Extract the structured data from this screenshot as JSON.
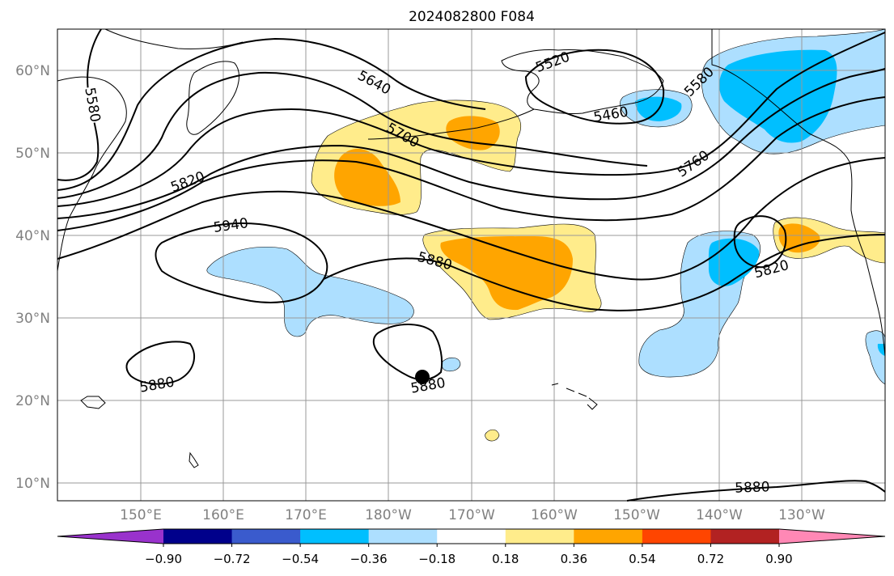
{
  "title": "2024082800 F084",
  "lat_labels": [
    "60°N",
    "50°N",
    "40°N",
    "30°N",
    "20°N",
    "10°N"
  ],
  "lon_labels": [
    "150°E",
    "160°E",
    "170°E",
    "180°W",
    "170°W",
    "160°W",
    "150°W",
    "140°W",
    "130°W"
  ],
  "contour_labels": [
    "5580",
    "5640",
    "5700",
    "5520",
    "5460",
    "5580",
    "5760",
    "5820",
    "5940",
    "5880",
    "5820",
    "5880",
    "5880",
    "5880"
  ],
  "colorbar": {
    "ticks": [
      "−0.90",
      "−0.72",
      "−0.54",
      "−0.36",
      "−0.18",
      "0.18",
      "0.36",
      "0.54",
      "0.72",
      "0.90"
    ],
    "colors": [
      "#9932CC",
      "#00008B",
      "#3A5BCD",
      "#00BFFF",
      "#ADDFFF",
      "#FFFFFF",
      "#FFEC8B",
      "#FFA500",
      "#FF4500",
      "#B22222",
      "#FF88B5"
    ]
  },
  "colors": {
    "pos_light": "#FFEC8B",
    "pos_mid": "#FFA500",
    "neg_light": "#ADDFFF",
    "neg_mid": "#00BFFF"
  },
  "marker": "storm-center-dot"
}
